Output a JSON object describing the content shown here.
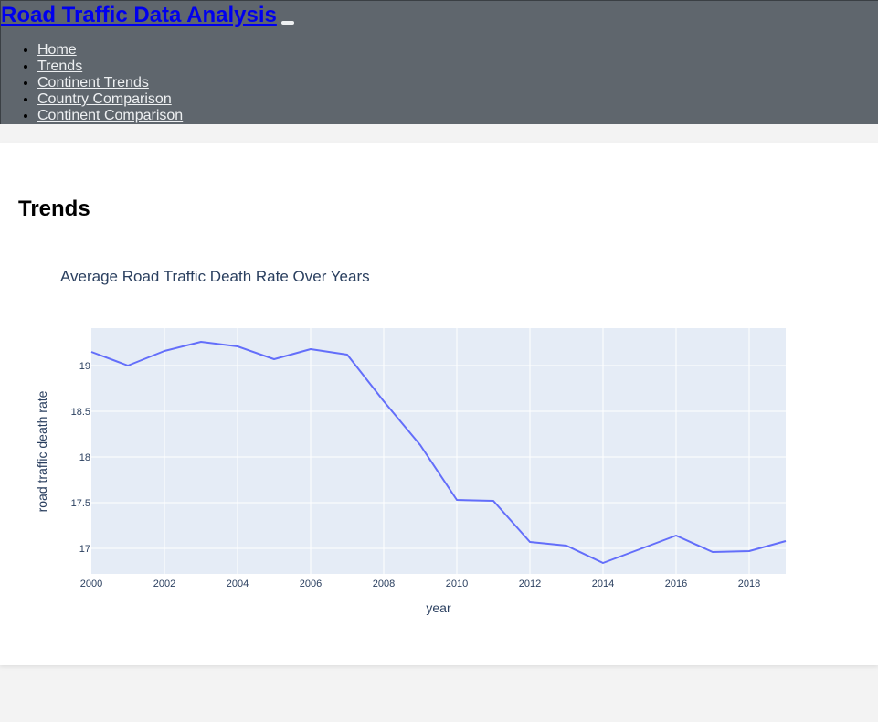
{
  "app": {
    "brand": "Road Traffic Data Analysis"
  },
  "nav": {
    "items": [
      {
        "label": "Home"
      },
      {
        "label": "Trends"
      },
      {
        "label": "Continent Trends"
      },
      {
        "label": "Country Comparison"
      },
      {
        "label": "Continent Comparison"
      }
    ]
  },
  "page": {
    "title": "Trends"
  },
  "colors": {
    "navbar": "#5f666d",
    "line": "#636efa",
    "plot_bg": "#e5ecf6",
    "brand_link": "#0000ee"
  },
  "chart_data": {
    "type": "line",
    "title": "Average Road Traffic Death Rate Over Years",
    "xlabel": "year",
    "ylabel": "road traffic death rate",
    "xlim": [
      2000,
      2019
    ],
    "ylim": [
      16.72,
      19.41
    ],
    "x_ticks": [
      2000,
      2002,
      2004,
      2006,
      2008,
      2010,
      2012,
      2014,
      2016,
      2018
    ],
    "y_ticks": [
      17,
      17.5,
      18,
      18.5,
      19
    ],
    "y_tick_labels": [
      "17",
      "17.5",
      "18",
      "18.5",
      "19"
    ],
    "grid": true,
    "series": [
      {
        "x": [
          2000,
          2001,
          2002,
          2003,
          2004,
          2005,
          2006,
          2007,
          2008,
          2009,
          2010,
          2011,
          2012,
          2013,
          2014,
          2015,
          2016,
          2017,
          2018,
          2019
        ],
        "values": [
          19.15,
          19.0,
          19.16,
          19.26,
          19.21,
          19.07,
          19.18,
          19.12,
          18.61,
          18.13,
          17.53,
          17.52,
          17.07,
          17.03,
          16.84,
          16.99,
          17.14,
          16.96,
          16.97,
          17.08
        ]
      }
    ]
  }
}
